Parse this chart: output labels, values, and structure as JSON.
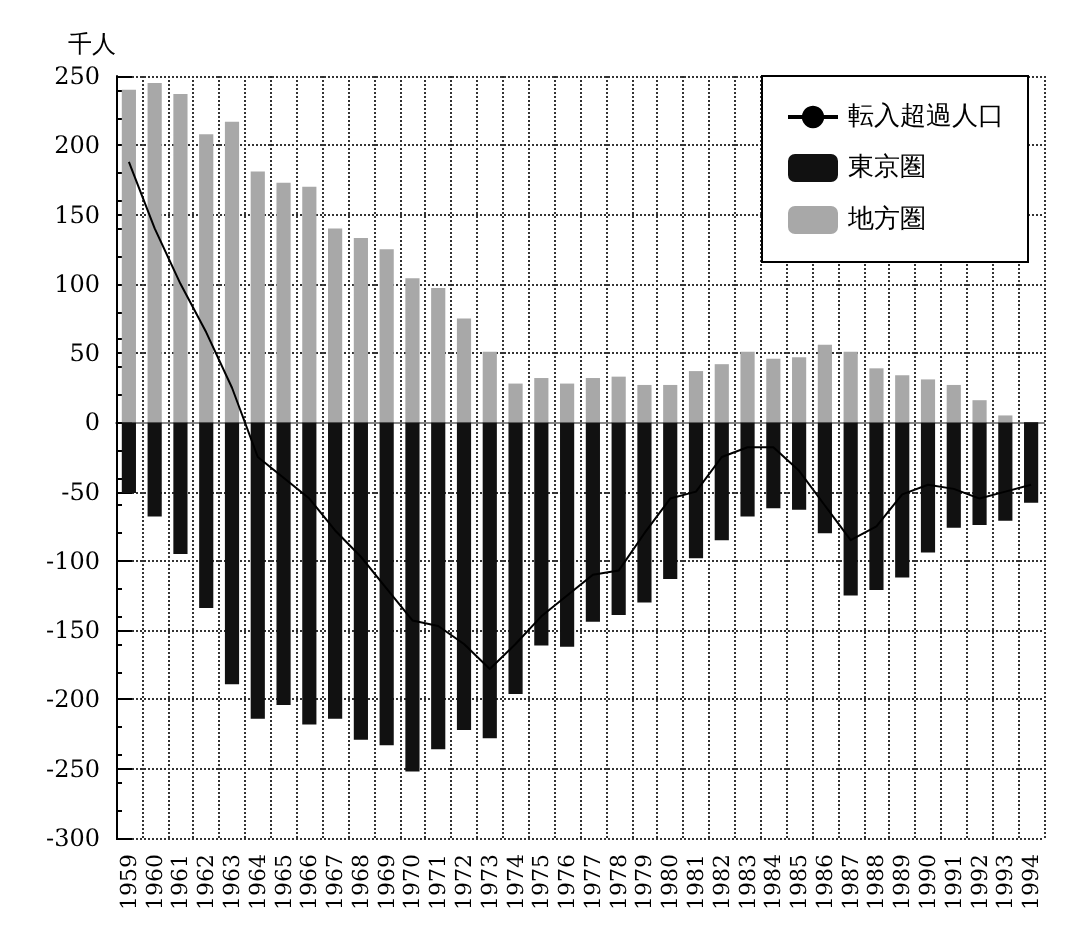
{
  "chart_data": {
    "type": "bar",
    "ylabel": "千人",
    "categories": [
      "1959",
      "1960",
      "1961",
      "1962",
      "1963",
      "1964",
      "1965",
      "1966",
      "1967",
      "1968",
      "1969",
      "1970",
      "1971",
      "1972",
      "1973",
      "1974",
      "1975",
      "1976",
      "1977",
      "1978",
      "1979",
      "1980",
      "1981",
      "1982",
      "1983",
      "1984",
      "1985",
      "1986",
      "1987",
      "1988",
      "1989",
      "1990",
      "1991",
      "1992",
      "1993",
      "1994"
    ],
    "series": [
      {
        "name": "転入超過人口",
        "type": "line",
        "color": "#000000",
        "values": [
          188,
          140,
          100,
          65,
          25,
          -25,
          -40,
          -55,
          -78,
          -97,
          -120,
          -143,
          -147,
          -160,
          -178,
          -160,
          -140,
          -125,
          -110,
          -107,
          -80,
          -55,
          -50,
          -25,
          -18,
          -18,
          -35,
          -60,
          -85,
          -75,
          -52,
          -45,
          -48,
          -55,
          -50,
          -45
        ]
      },
      {
        "name": "東京圏",
        "color": "#111111",
        "values": [
          -51,
          -68,
          -95,
          -134,
          -189,
          -214,
          -204,
          -218,
          -214,
          -229,
          -233,
          -252,
          -236,
          -222,
          -228,
          -196,
          -161,
          -162,
          -144,
          -139,
          -130,
          -113,
          -98,
          -85,
          -68,
          -62,
          -63,
          -80,
          -125,
          -121,
          -112,
          -94,
          -76,
          -74,
          -71,
          -58
        ]
      },
      {
        "name": "地方圏",
        "color": "#a8a8a8",
        "values": [
          240,
          245,
          237,
          208,
          217,
          181,
          173,
          170,
          140,
          133,
          125,
          104,
          97,
          75,
          51,
          28,
          32,
          28,
          32,
          33,
          27,
          27,
          37,
          42,
          51,
          46,
          47,
          56,
          51,
          39,
          34,
          31,
          27,
          16,
          5,
          null
        ]
      }
    ],
    "stacked": true,
    "ylim": [
      -300,
      250
    ],
    "yticks": [
      -300,
      -250,
      -200,
      -150,
      -100,
      -50,
      0,
      50,
      100,
      150,
      200,
      250
    ],
    "grid": true,
    "legend": "top right",
    "marker": "none",
    "line_style": "solid"
  }
}
